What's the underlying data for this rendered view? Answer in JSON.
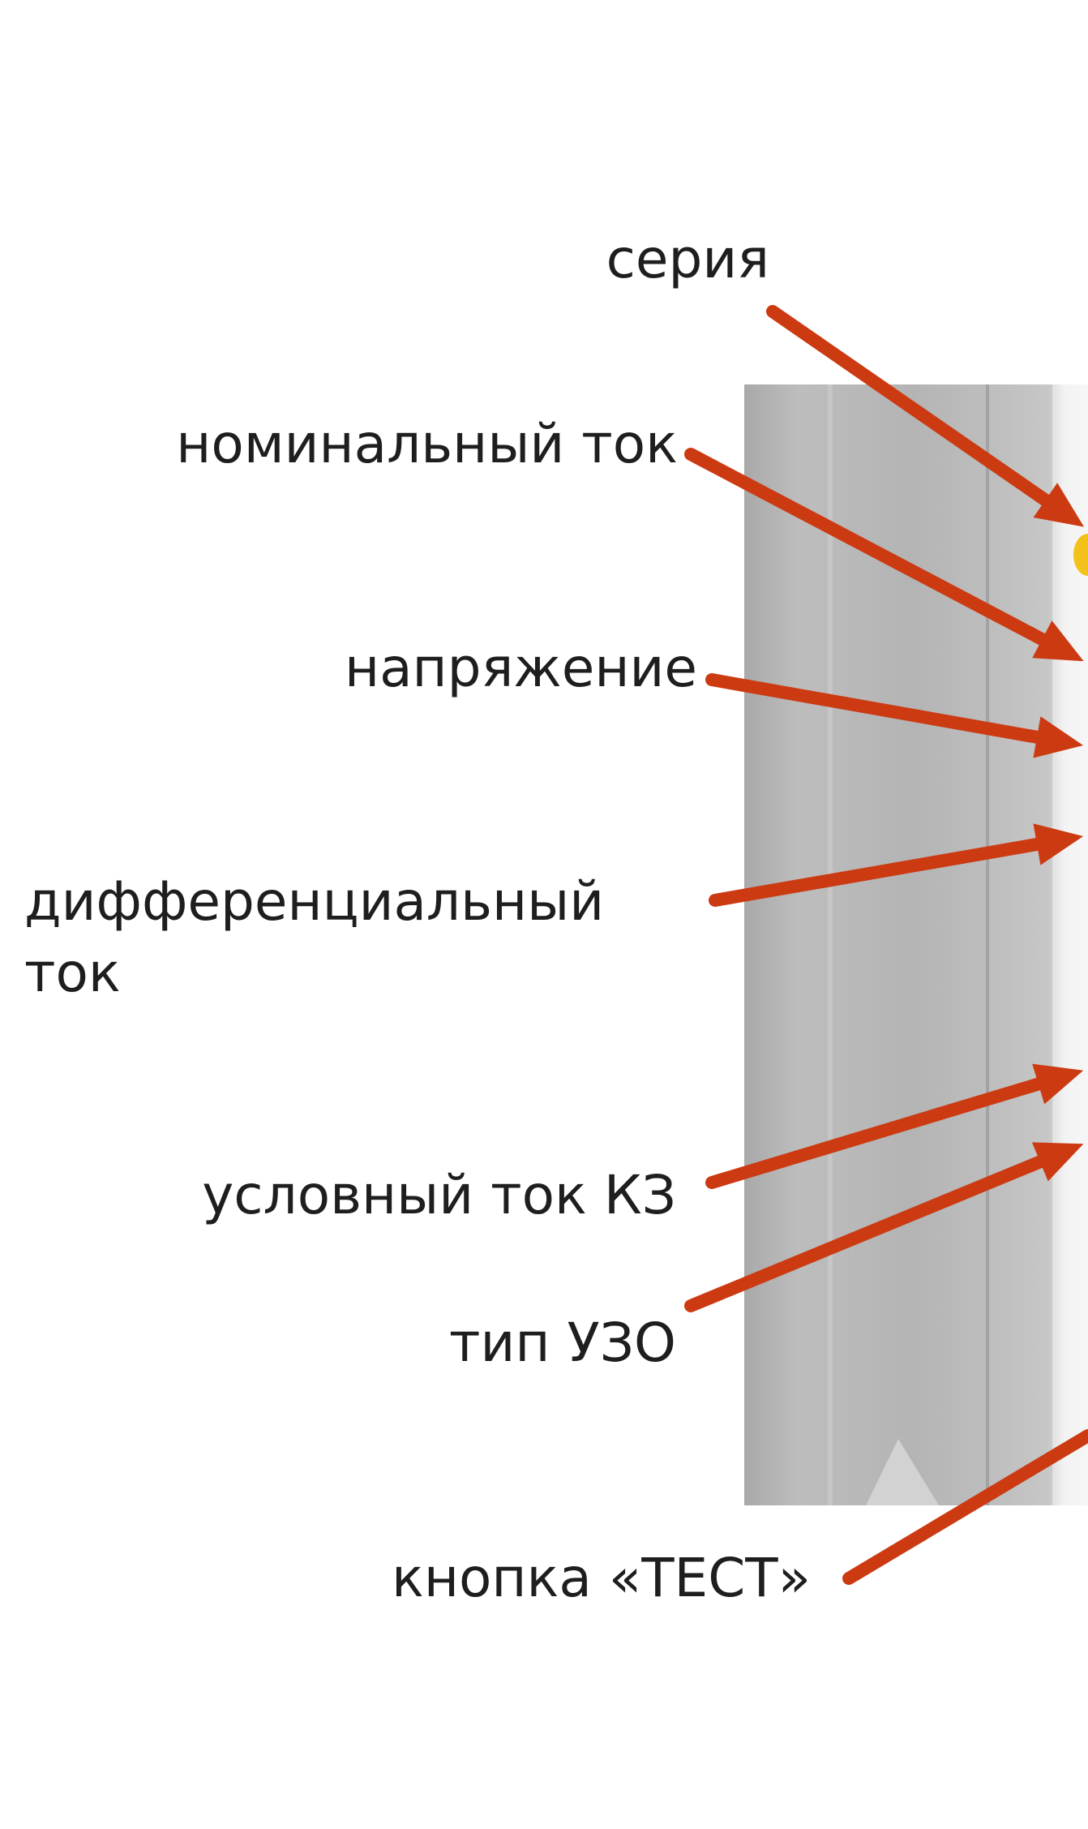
{
  "labels": {
    "series": "серия",
    "nominal_current": "номинальный ток",
    "voltage": "напряжение",
    "differential_current": "дифференциальный\nток",
    "short_circuit_current": "условный ток КЗ",
    "rcd_type": "тип УЗО",
    "test_button": "кнопка «ТЕСТ»"
  },
  "colors": {
    "arrow": "#cc3a12",
    "device_side": "#b8b8b8",
    "device_face": "#eeeeee",
    "text": "#1e1e1e",
    "accent": "#f2c21b"
  }
}
